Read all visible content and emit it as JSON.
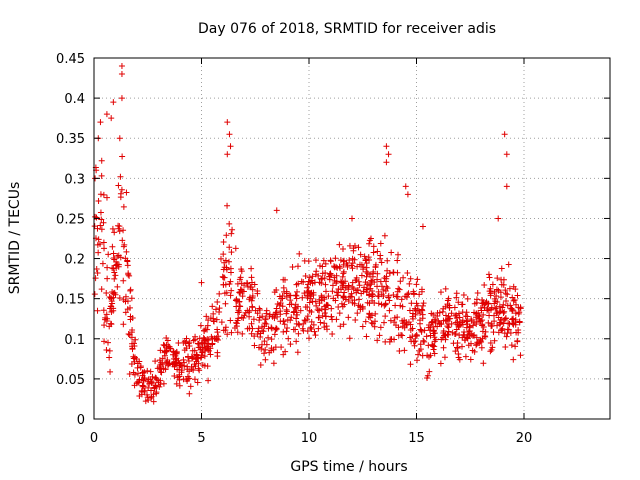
{
  "chart_data": {
    "type": "scatter",
    "title": "Day 076 of 2018, SRMTID for receiver adis",
    "xlabel": "GPS time / hours",
    "ylabel": "SRMTID / TECUs",
    "xlim": [
      0,
      24
    ],
    "ylim": [
      0,
      0.45
    ],
    "x_ticks": [
      0,
      5,
      10,
      15,
      20
    ],
    "y_ticks": [
      0,
      0.05,
      0.1,
      0.15,
      0.2,
      0.25,
      0.3,
      0.35,
      0.4,
      0.45
    ],
    "marker": "+",
    "color": "#e00000",
    "grid": true,
    "envelope": [
      {
        "x": 0.0,
        "base": 0.2,
        "spread": 0.14
      },
      {
        "x": 0.15,
        "base": 0.26,
        "spread": 0.14
      },
      {
        "x": 0.4,
        "base": 0.22,
        "spread": 0.16
      },
      {
        "x": 0.7,
        "base": 0.13,
        "spread": 0.12
      },
      {
        "x": 1.0,
        "base": 0.2,
        "spread": 0.12
      },
      {
        "x": 1.3,
        "base": 0.24,
        "spread": 0.18
      },
      {
        "x": 1.6,
        "base": 0.14,
        "spread": 0.1
      },
      {
        "x": 1.9,
        "base": 0.07,
        "spread": 0.05
      },
      {
        "x": 2.3,
        "base": 0.04,
        "spread": 0.03
      },
      {
        "x": 2.8,
        "base": 0.04,
        "spread": 0.03
      },
      {
        "x": 3.3,
        "base": 0.08,
        "spread": 0.04
      },
      {
        "x": 4.0,
        "base": 0.07,
        "spread": 0.04
      },
      {
        "x": 4.6,
        "base": 0.07,
        "spread": 0.04
      },
      {
        "x": 5.2,
        "base": 0.09,
        "spread": 0.05
      },
      {
        "x": 5.8,
        "base": 0.12,
        "spread": 0.06
      },
      {
        "x": 6.2,
        "base": 0.2,
        "spread": 0.14
      },
      {
        "x": 6.6,
        "base": 0.16,
        "spread": 0.08
      },
      {
        "x": 7.2,
        "base": 0.15,
        "spread": 0.08
      },
      {
        "x": 7.8,
        "base": 0.1,
        "spread": 0.06
      },
      {
        "x": 8.5,
        "base": 0.13,
        "spread": 0.08
      },
      {
        "x": 9.5,
        "base": 0.14,
        "spread": 0.07
      },
      {
        "x": 10.5,
        "base": 0.15,
        "spread": 0.07
      },
      {
        "x": 11.5,
        "base": 0.17,
        "spread": 0.08
      },
      {
        "x": 12.5,
        "base": 0.16,
        "spread": 0.08
      },
      {
        "x": 13.5,
        "base": 0.17,
        "spread": 0.09
      },
      {
        "x": 14.5,
        "base": 0.13,
        "spread": 0.08
      },
      {
        "x": 15.5,
        "base": 0.11,
        "spread": 0.07
      },
      {
        "x": 16.5,
        "base": 0.12,
        "spread": 0.06
      },
      {
        "x": 17.5,
        "base": 0.11,
        "spread": 0.06
      },
      {
        "x": 18.5,
        "base": 0.13,
        "spread": 0.07
      },
      {
        "x": 19.3,
        "base": 0.14,
        "spread": 0.08
      },
      {
        "x": 19.85,
        "base": 0.12,
        "spread": 0.05
      }
    ],
    "spikes": [
      {
        "x": 1.3,
        "y": 0.44
      },
      {
        "x": 1.3,
        "y": 0.43
      },
      {
        "x": 1.3,
        "y": 0.4
      },
      {
        "x": 0.9,
        "y": 0.395
      },
      {
        "x": 0.6,
        "y": 0.38
      },
      {
        "x": 0.8,
        "y": 0.375
      },
      {
        "x": 0.3,
        "y": 0.37
      },
      {
        "x": 0.2,
        "y": 0.35
      },
      {
        "x": 1.2,
        "y": 0.35
      },
      {
        "x": 6.2,
        "y": 0.37
      },
      {
        "x": 6.3,
        "y": 0.355
      },
      {
        "x": 6.35,
        "y": 0.34
      },
      {
        "x": 6.2,
        "y": 0.33
      },
      {
        "x": 13.6,
        "y": 0.34
      },
      {
        "x": 13.7,
        "y": 0.33
      },
      {
        "x": 13.6,
        "y": 0.32
      },
      {
        "x": 19.1,
        "y": 0.355
      },
      {
        "x": 19.2,
        "y": 0.33
      },
      {
        "x": 19.2,
        "y": 0.29
      },
      {
        "x": 14.5,
        "y": 0.29
      },
      {
        "x": 14.6,
        "y": 0.28
      },
      {
        "x": 8.5,
        "y": 0.26
      },
      {
        "x": 18.8,
        "y": 0.25
      },
      {
        "x": 15.3,
        "y": 0.24
      },
      {
        "x": 0.1,
        "y": 0.31
      },
      {
        "x": 0.05,
        "y": 0.3
      },
      {
        "x": 5.0,
        "y": 0.17
      },
      {
        "x": 12.0,
        "y": 0.25
      }
    ],
    "point_count": 1400,
    "seed": 76
  }
}
